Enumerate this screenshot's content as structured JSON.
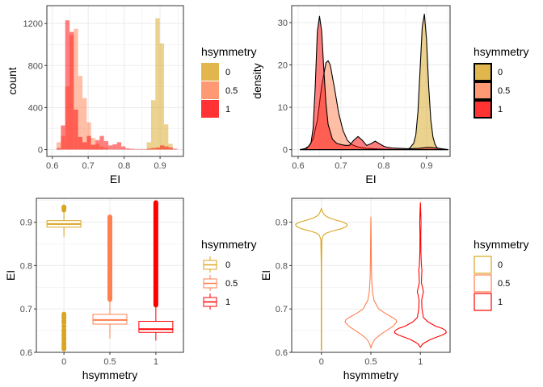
{
  "colors": {
    "h0": "#DAA520",
    "h05": "#FF7F50",
    "h1": "#FF0000",
    "panel_bg": "#FFFFFF",
    "grid": "#EBEBEB",
    "border": "#333333",
    "axis_text": "#4D4D4D"
  },
  "chart_data": [
    {
      "type": "histogram",
      "xlabel": "EI",
      "ylabel": "count",
      "xlim": [
        0.585,
        0.965
      ],
      "ylim": [
        -65,
        1370
      ],
      "xticks": [
        0.6,
        0.7,
        0.8,
        0.9
      ],
      "xtick_labels": [
        "0.6",
        "0.7",
        "0.8",
        "0.9"
      ],
      "yticks": [
        0,
        400,
        800,
        1200
      ],
      "ytick_labels": [
        "0",
        "400",
        "800",
        "1200"
      ],
      "bin_width": 0.012,
      "grid": true,
      "legend": {
        "title": "hsymmetry",
        "position": "right",
        "entries": [
          "0",
          "0.5",
          "1"
        ]
      },
      "series": [
        {
          "name": "0",
          "color_key": "h0",
          "opacity": 0.5,
          "bins": [
            [
              0.863,
              0.875,
              70
            ],
            [
              0.875,
              0.887,
              470
            ],
            [
              0.887,
              0.899,
              1250
            ],
            [
              0.899,
              0.911,
              1010
            ],
            [
              0.911,
              0.923,
              240
            ],
            [
              0.923,
              0.935,
              55
            ]
          ]
        },
        {
          "name": "0.5",
          "color_key": "h05",
          "opacity": 0.5,
          "bins": [
            [
              0.612,
              0.624,
              70
            ],
            [
              0.624,
              0.636,
              130
            ],
            [
              0.636,
              0.648,
              600
            ],
            [
              0.648,
              0.66,
              1090
            ],
            [
              0.66,
              0.672,
              1150
            ],
            [
              0.672,
              0.684,
              700
            ],
            [
              0.684,
              0.696,
              490
            ],
            [
              0.696,
              0.708,
              260
            ],
            [
              0.708,
              0.72,
              110
            ],
            [
              0.72,
              0.732,
              55
            ],
            [
              0.732,
              0.744,
              30
            ],
            [
              0.744,
              0.756,
              15
            ]
          ]
        },
        {
          "name": "1",
          "color_key": "h1",
          "opacity": 0.5,
          "bins": [
            [
              0.612,
              0.624,
              15
            ],
            [
              0.624,
              0.636,
              230
            ],
            [
              0.636,
              0.648,
              1230
            ],
            [
              0.648,
              0.66,
              1120
            ],
            [
              0.66,
              0.672,
              380
            ],
            [
              0.672,
              0.684,
              120
            ],
            [
              0.684,
              0.696,
              70
            ],
            [
              0.696,
              0.708,
              130
            ],
            [
              0.708,
              0.72,
              45
            ],
            [
              0.72,
              0.732,
              90
            ],
            [
              0.732,
              0.744,
              130
            ],
            [
              0.744,
              0.756,
              80
            ],
            [
              0.756,
              0.768,
              40
            ],
            [
              0.768,
              0.78,
              50
            ],
            [
              0.78,
              0.792,
              70
            ],
            [
              0.792,
              0.804,
              30
            ],
            [
              0.804,
              0.816,
              12
            ],
            [
              0.816,
              0.828,
              8
            ],
            [
              0.828,
              0.84,
              5
            ],
            [
              0.84,
              0.852,
              5
            ],
            [
              0.852,
              0.864,
              5
            ],
            [
              0.864,
              0.876,
              10
            ],
            [
              0.876,
              0.888,
              15
            ],
            [
              0.888,
              0.9,
              20
            ],
            [
              0.9,
              0.912,
              40
            ],
            [
              0.912,
              0.924,
              30
            ],
            [
              0.924,
              0.936,
              20
            ],
            [
              0.936,
              0.948,
              8
            ]
          ]
        }
      ]
    },
    {
      "type": "density",
      "xlabel": "EI",
      "ylabel": "density",
      "xlim": [
        0.585,
        0.955
      ],
      "ylim": [
        -1.6,
        34
      ],
      "xticks": [
        0.6,
        0.7,
        0.8,
        0.9
      ],
      "xtick_labels": [
        "0.6",
        "0.7",
        "0.8",
        "0.9"
      ],
      "yticks": [
        0,
        10,
        20,
        30
      ],
      "ytick_labels": [
        "0",
        "10",
        "20",
        "30"
      ],
      "grid": true,
      "legend": {
        "title": "hsymmetry",
        "position": "right",
        "entries": [
          "0",
          "0.5",
          "1"
        ]
      },
      "series": [
        {
          "name": "0",
          "color_key": "h0",
          "opacity": 0.5,
          "x": [
            0.605,
            0.85,
            0.86,
            0.87,
            0.875,
            0.88,
            0.885,
            0.89,
            0.895,
            0.9,
            0.905,
            0.91,
            0.915,
            0.92,
            0.925,
            0.935,
            0.95
          ],
          "y": [
            0,
            0,
            0.3,
            1.5,
            3.5,
            9,
            19,
            29,
            32,
            26,
            15,
            7,
            3,
            1.2,
            0.4,
            0.1,
            0
          ]
        },
        {
          "name": "0.5",
          "color_key": "h05",
          "opacity": 0.5,
          "x": [
            0.605,
            0.615,
            0.625,
            0.635,
            0.645,
            0.655,
            0.665,
            0.67,
            0.675,
            0.685,
            0.695,
            0.705,
            0.715,
            0.725,
            0.735,
            0.745,
            0.76,
            0.78,
            0.8,
            0.82,
            0.86,
            0.95
          ],
          "y": [
            0,
            0.2,
            0.8,
            2.5,
            7,
            15,
            20.5,
            21,
            20,
            14.5,
            8.5,
            4.5,
            2.2,
            1.2,
            0.8,
            0.5,
            0.3,
            0.2,
            0.1,
            0.05,
            0,
            0
          ]
        },
        {
          "name": "1",
          "color_key": "h1",
          "opacity": 0.5,
          "x": [
            0.605,
            0.62,
            0.63,
            0.635,
            0.64,
            0.645,
            0.65,
            0.655,
            0.66,
            0.665,
            0.67,
            0.68,
            0.69,
            0.7,
            0.71,
            0.72,
            0.73,
            0.74,
            0.75,
            0.76,
            0.77,
            0.78,
            0.79,
            0.8,
            0.81,
            0.82,
            0.84,
            0.86,
            0.88,
            0.9,
            0.91,
            0.93,
            0.95
          ],
          "y": [
            0,
            0.3,
            1.5,
            5,
            15,
            28,
            31.5,
            28,
            19,
            11,
            6,
            2.5,
            1.5,
            1.2,
            1.0,
            1.0,
            2.2,
            3.1,
            2.2,
            1.0,
            1.4,
            2.0,
            1.4,
            0.8,
            0.5,
            0.4,
            0.3,
            0.2,
            0.3,
            0.5,
            0.5,
            0.3,
            0
          ]
        }
      ]
    },
    {
      "type": "boxplot",
      "xlabel": "hsymmetry",
      "ylabel": "EI",
      "categories": [
        "0",
        "0.5",
        "1"
      ],
      "ylim": [
        0.6,
        0.955
      ],
      "yticks": [
        0.6,
        0.7,
        0.8,
        0.9
      ],
      "ytick_labels": [
        "0.6",
        "0.7",
        "0.8",
        "0.9"
      ],
      "grid": true,
      "legend": {
        "title": "hsymmetry",
        "position": "right",
        "entries": [
          "0",
          "0.5",
          "1"
        ]
      },
      "series": [
        {
          "name": "0",
          "color_key": "h0",
          "q1": 0.8885,
          "median": 0.8958,
          "q3": 0.9035,
          "whisker_low": 0.866,
          "whisker_high": 0.926,
          "outliers": [
            0.928,
            0.932,
            0.935,
            0.608,
            0.612,
            0.618,
            0.622,
            0.628,
            0.632,
            0.638,
            0.642,
            0.648,
            0.652,
            0.66,
            0.668,
            0.672,
            0.678,
            0.682,
            0.688
          ]
        },
        {
          "name": "0.5",
          "color_key": "h05",
          "q1": 0.665,
          "median": 0.6745,
          "q3": 0.6875,
          "whisker_low": 0.632,
          "whisker_high": 0.721,
          "outlier_bands": [
            [
              0.722,
              0.912
            ]
          ]
        },
        {
          "name": "1",
          "color_key": "h1",
          "q1": 0.646,
          "median": 0.6535,
          "q3": 0.6715,
          "whisker_low": 0.627,
          "whisker_high": 0.709,
          "outlier_bands": [
            [
              0.709,
              0.945
            ]
          ]
        }
      ]
    },
    {
      "type": "violin",
      "xlabel": "hsymmetry",
      "ylabel": "EI",
      "categories": [
        "0",
        "0.5",
        "1"
      ],
      "ylim": [
        0.6,
        0.955
      ],
      "yticks": [
        0.6,
        0.7,
        0.8,
        0.9
      ],
      "ytick_labels": [
        "0.6",
        "0.7",
        "0.8",
        "0.9"
      ],
      "grid": true,
      "legend": {
        "title": "hsymmetry",
        "position": "right",
        "entries": [
          "0",
          "0.5",
          "1"
        ]
      },
      "series": [
        {
          "name": "0",
          "color_key": "h0",
          "y": [
            0.605,
            0.7,
            0.8,
            0.86,
            0.87,
            0.875,
            0.88,
            0.885,
            0.89,
            0.895,
            0.9,
            0.905,
            0.91,
            0.915,
            0.92,
            0.925,
            0.932
          ],
          "w": [
            0.006,
            0.006,
            0.006,
            0.02,
            0.08,
            0.2,
            0.45,
            0.78,
            0.96,
            1.0,
            0.85,
            0.55,
            0.3,
            0.15,
            0.08,
            0.04,
            0
          ]
        },
        {
          "name": "0.5",
          "color_key": "h05",
          "y": [
            0.61,
            0.62,
            0.63,
            0.64,
            0.65,
            0.66,
            0.67,
            0.675,
            0.68,
            0.69,
            0.7,
            0.72,
            0.74,
            0.77,
            0.82,
            0.87,
            0.912
          ],
          "w": [
            0,
            0.05,
            0.15,
            0.35,
            0.6,
            0.85,
            1.0,
            0.97,
            0.85,
            0.55,
            0.3,
            0.12,
            0.06,
            0.03,
            0.015,
            0.01,
            0
          ]
        },
        {
          "name": "1",
          "color_key": "h1",
          "y": [
            0.612,
            0.62,
            0.63,
            0.64,
            0.645,
            0.65,
            0.655,
            0.66,
            0.67,
            0.68,
            0.7,
            0.72,
            0.73,
            0.74,
            0.75,
            0.76,
            0.78,
            0.79,
            0.8,
            0.83,
            0.87,
            0.9,
            0.92,
            0.945
          ],
          "w": [
            0,
            0.1,
            0.4,
            0.85,
            1.0,
            0.98,
            0.85,
            0.6,
            0.3,
            0.12,
            0.06,
            0.05,
            0.08,
            0.12,
            0.08,
            0.04,
            0.05,
            0.06,
            0.04,
            0.02,
            0.015,
            0.025,
            0.015,
            0
          ]
        }
      ]
    }
  ]
}
